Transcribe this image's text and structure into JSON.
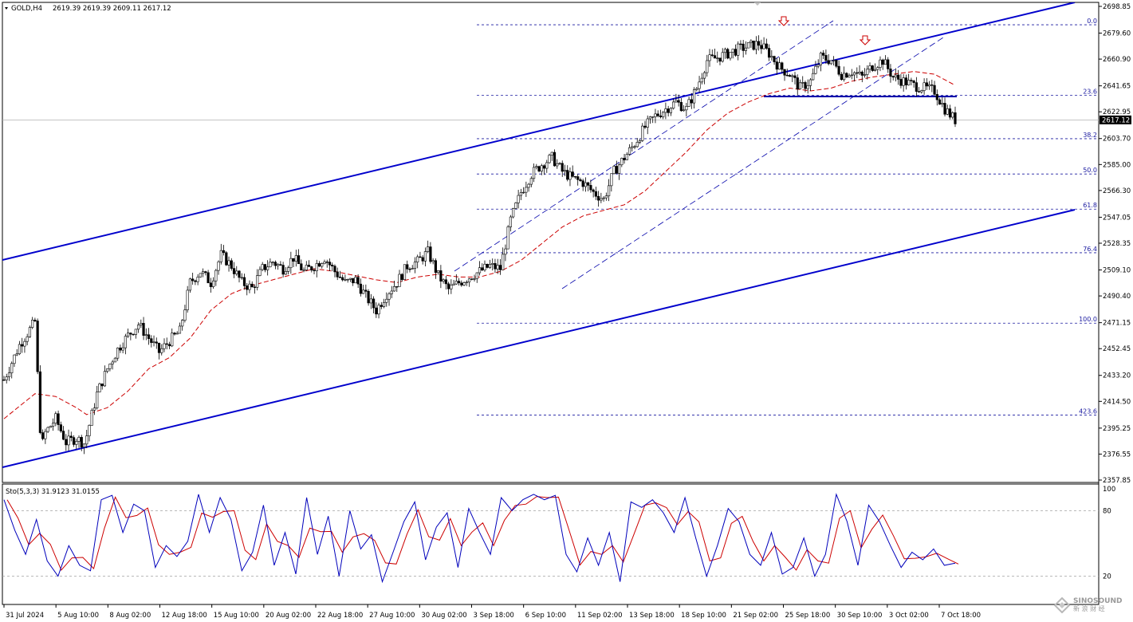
{
  "header": {
    "symbol": "GOLD,H4",
    "ohlc": "2619.39 2619.39 2609.11 2617.12",
    "indicator": "Sto(5,3,3) 31.9123 31.0155"
  },
  "price_axis": {
    "ticks": [
      "2698.85",
      "2679.60",
      "2660.90",
      "2641.65",
      "2622.95",
      "2603.70",
      "2585.00",
      "2566.30",
      "2547.05",
      "2528.35",
      "2509.10",
      "2490.40",
      "2471.15",
      "2452.45",
      "2433.20",
      "2414.50",
      "2395.25",
      "2376.55",
      "2357.85"
    ],
    "current_price": "2617.12"
  },
  "stoch_axis": {
    "ticks": [
      "100",
      "80",
      "20"
    ]
  },
  "time_axis": {
    "ticks": [
      "31 Jul 2024",
      "5 Aug 10:00",
      "8 Aug 02:00",
      "12 Aug 18:00",
      "15 Aug 10:00",
      "20 Aug 02:00",
      "22 Aug 18:00",
      "27 Aug 10:00",
      "30 Aug 02:00",
      "3 Sep 18:00",
      "6 Sep 10:00",
      "11 Sep 02:00",
      "13 Sep 18:00",
      "18 Sep 10:00",
      "21 Sep 02:00",
      "25 Sep 18:00",
      "30 Sep 10:00",
      "3 Oct 02:00",
      "7 Oct 18:00"
    ]
  },
  "fib_levels": [
    {
      "label": "0.0",
      "price": 2685.6
    },
    {
      "label": "23.6",
      "price": 2634.9
    },
    {
      "label": "38.2",
      "price": 2603.6
    },
    {
      "label": "50.0",
      "price": 2578.2
    },
    {
      "label": "61.8",
      "price": 2552.9
    },
    {
      "label": "76.4",
      "price": 2521.5
    },
    {
      "label": "100.0",
      "price": 2470.8
    },
    {
      "label": "423.6",
      "price": 2404.6
    }
  ],
  "colors": {
    "channel": "#0000cc",
    "fib": "#1a1aa0",
    "ma": "#cc0000",
    "stoch_main": "#0000bb",
    "stoch_signal": "#cc0000",
    "marker": "#cc0000"
  },
  "watermark": {
    "line1": "SINOSOUND",
    "line2": "新 浪 财 经"
  },
  "chart_data": {
    "type": "candlestick",
    "symbol": "GOLD",
    "timeframe": "H4",
    "ylim": [
      2357.85,
      2698.85
    ],
    "close_path": [
      [
        0,
        2430
      ],
      [
        1.5,
        2455
      ],
      [
        3,
        2472
      ],
      [
        3.6,
        2380
      ],
      [
        4,
        2392
      ],
      [
        5,
        2402
      ],
      [
        6,
        2385
      ],
      [
        7,
        2388
      ],
      [
        7.8,
        2384
      ],
      [
        9,
        2420
      ],
      [
        10,
        2438
      ],
      [
        11,
        2452
      ],
      [
        12,
        2462
      ],
      [
        13,
        2470
      ],
      [
        14,
        2460
      ],
      [
        15,
        2450
      ],
      [
        16,
        2458
      ],
      [
        17,
        2465
      ],
      [
        18,
        2500
      ],
      [
        19,
        2508
      ],
      [
        20,
        2500
      ],
      [
        21,
        2520
      ],
      [
        22,
        2512
      ],
      [
        23,
        2500
      ],
      [
        24,
        2496
      ],
      [
        25,
        2510
      ],
      [
        26,
        2515
      ],
      [
        27,
        2510
      ],
      [
        28,
        2518
      ],
      [
        29,
        2508
      ],
      [
        30,
        2512
      ],
      [
        31,
        2518
      ],
      [
        32,
        2508
      ],
      [
        33,
        2500
      ],
      [
        34,
        2502
      ],
      [
        35,
        2490
      ],
      [
        36,
        2480
      ],
      [
        37,
        2492
      ],
      [
        38,
        2500
      ],
      [
        39,
        2512
      ],
      [
        40,
        2515
      ],
      [
        41,
        2522
      ],
      [
        42,
        2505
      ],
      [
        43,
        2495
      ],
      [
        44,
        2500
      ],
      [
        45,
        2504
      ],
      [
        46,
        2508
      ],
      [
        47,
        2512
      ],
      [
        48,
        2510
      ],
      [
        49,
        2545
      ],
      [
        50,
        2565
      ],
      [
        51,
        2578
      ],
      [
        52,
        2585
      ],
      [
        53,
        2590
      ],
      [
        54,
        2580
      ],
      [
        55,
        2575
      ],
      [
        56,
        2572
      ],
      [
        57,
        2565
      ],
      [
        58,
        2560
      ],
      [
        59,
        2580
      ],
      [
        60,
        2590
      ],
      [
        61,
        2600
      ],
      [
        62,
        2612
      ],
      [
        63,
        2620
      ],
      [
        64,
        2625
      ],
      [
        65,
        2630
      ],
      [
        66,
        2625
      ],
      [
        67,
        2640
      ],
      [
        68,
        2660
      ],
      [
        69,
        2662
      ],
      [
        70,
        2665
      ],
      [
        71,
        2668
      ],
      [
        72,
        2670
      ],
      [
        73,
        2672
      ],
      [
        74,
        2665
      ],
      [
        75,
        2655
      ],
      [
        76,
        2650
      ],
      [
        77,
        2640
      ],
      [
        78,
        2645
      ],
      [
        79,
        2662
      ],
      [
        80,
        2660
      ],
      [
        81,
        2650
      ],
      [
        82,
        2652
      ],
      [
        83,
        2648
      ],
      [
        84,
        2656
      ],
      [
        85,
        2660
      ],
      [
        86,
        2648
      ],
      [
        87,
        2645
      ],
      [
        88,
        2642
      ],
      [
        89,
        2640
      ],
      [
        90,
        2638
      ],
      [
        91,
        2625
      ],
      [
        92,
        2617
      ]
    ],
    "moving_average_path": [
      [
        0,
        2402
      ],
      [
        3,
        2420
      ],
      [
        5,
        2418
      ],
      [
        7,
        2410
      ],
      [
        8,
        2405
      ],
      [
        10,
        2410
      ],
      [
        12,
        2422
      ],
      [
        14,
        2438
      ],
      [
        16,
        2446
      ],
      [
        18,
        2460
      ],
      [
        20,
        2480
      ],
      [
        22,
        2492
      ],
      [
        24,
        2498
      ],
      [
        26,
        2502
      ],
      [
        28,
        2506
      ],
      [
        30,
        2510
      ],
      [
        32,
        2508
      ],
      [
        34,
        2505
      ],
      [
        36,
        2502
      ],
      [
        38,
        2500
      ],
      [
        40,
        2504
      ],
      [
        42,
        2506
      ],
      [
        44,
        2504
      ],
      [
        46,
        2504
      ],
      [
        48,
        2508
      ],
      [
        50,
        2516
      ],
      [
        52,
        2528
      ],
      [
        54,
        2540
      ],
      [
        56,
        2548
      ],
      [
        58,
        2552
      ],
      [
        60,
        2556
      ],
      [
        62,
        2566
      ],
      [
        64,
        2580
      ],
      [
        66,
        2594
      ],
      [
        68,
        2610
      ],
      [
        70,
        2622
      ],
      [
        72,
        2630
      ],
      [
        74,
        2636
      ],
      [
        76,
        2640
      ],
      [
        78,
        2638
      ],
      [
        80,
        2640
      ],
      [
        82,
        2645
      ],
      [
        84,
        2648
      ],
      [
        86,
        2650
      ],
      [
        88,
        2652
      ],
      [
        90,
        2650
      ],
      [
        92,
        2642
      ]
    ],
    "stochastic": {
      "name": "Sto(5,3,3)",
      "main": 31.9123,
      "signal": 31.0155,
      "ylim": [
        0,
        100
      ],
      "levels": [
        20,
        80
      ],
      "main_path": [
        [
          0,
          90
        ],
        [
          1,
          62
        ],
        [
          2,
          40
        ],
        [
          3,
          72
        ],
        [
          4,
          34
        ],
        [
          5,
          20
        ],
        [
          6,
          48
        ],
        [
          7,
          30
        ],
        [
          8,
          25
        ],
        [
          9,
          90
        ],
        [
          10,
          94
        ],
        [
          11,
          60
        ],
        [
          12,
          86
        ],
        [
          13,
          80
        ],
        [
          14,
          28
        ],
        [
          15,
          48
        ],
        [
          16,
          38
        ],
        [
          17,
          52
        ],
        [
          18,
          95
        ],
        [
          19,
          60
        ],
        [
          20,
          92
        ],
        [
          21,
          72
        ],
        [
          22,
          25
        ],
        [
          23,
          42
        ],
        [
          24,
          85
        ],
        [
          25,
          30
        ],
        [
          26,
          60
        ],
        [
          27,
          22
        ],
        [
          28,
          92
        ],
        [
          29,
          40
        ],
        [
          30,
          75
        ],
        [
          31,
          20
        ],
        [
          32,
          80
        ],
        [
          33,
          45
        ],
        [
          34,
          58
        ],
        [
          35,
          15
        ],
        [
          36,
          42
        ],
        [
          37,
          70
        ],
        [
          38,
          88
        ],
        [
          39,
          35
        ],
        [
          40,
          65
        ],
        [
          41,
          78
        ],
        [
          42,
          28
        ],
        [
          43,
          82
        ],
        [
          44,
          60
        ],
        [
          45,
          40
        ],
        [
          46,
          92
        ],
        [
          47,
          80
        ],
        [
          48,
          90
        ],
        [
          49,
          95
        ],
        [
          50,
          90
        ],
        [
          51,
          94
        ],
        [
          52,
          40
        ],
        [
          53,
          24
        ],
        [
          54,
          55
        ],
        [
          55,
          30
        ],
        [
          56,
          60
        ],
        [
          57,
          15
        ],
        [
          58,
          88
        ],
        [
          59,
          83
        ],
        [
          60,
          90
        ],
        [
          61,
          78
        ],
        [
          62,
          60
        ],
        [
          63,
          92
        ],
        [
          64,
          55
        ],
        [
          65,
          20
        ],
        [
          66,
          48
        ],
        [
          67,
          82
        ],
        [
          68,
          70
        ],
        [
          69,
          40
        ],
        [
          70,
          30
        ],
        [
          71,
          60
        ],
        [
          72,
          22
        ],
        [
          73,
          28
        ],
        [
          74,
          55
        ],
        [
          75,
          20
        ],
        [
          76,
          40
        ],
        [
          77,
          95
        ],
        [
          78,
          70
        ],
        [
          79,
          30
        ],
        [
          80,
          85
        ],
        [
          81,
          70
        ],
        [
          82,
          48
        ],
        [
          83,
          28
        ],
        [
          84,
          42
        ],
        [
          85,
          35
        ],
        [
          86,
          45
        ],
        [
          87,
          30
        ],
        [
          88,
          32
        ]
      ]
    }
  }
}
